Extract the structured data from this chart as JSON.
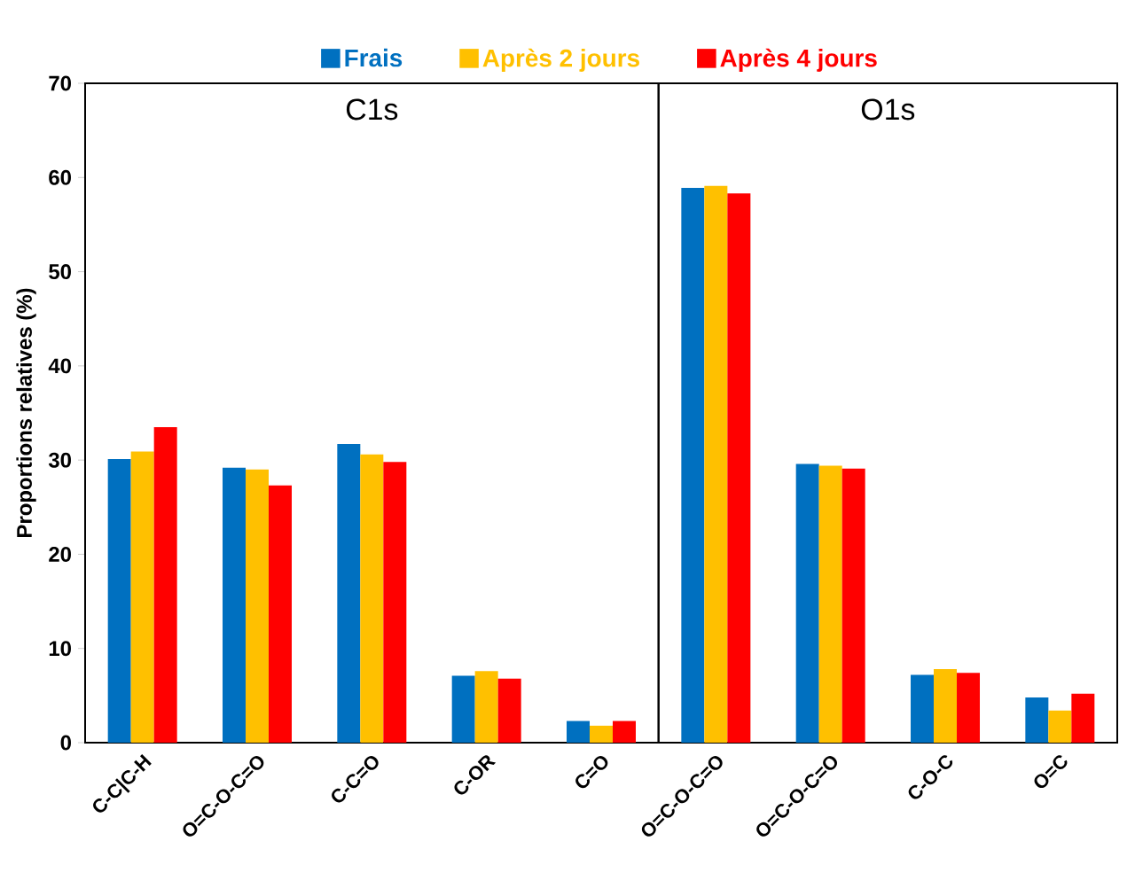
{
  "chart_data": [
    {
      "type": "bar",
      "title": "C1s",
      "ylabel": "Proportions relatives (%)",
      "categories": [
        "C-C|C-H",
        "O=C-O-C=O",
        "C-C=O",
        "C-OR",
        "C=O"
      ],
      "series": [
        {
          "name": "Frais",
          "color": "#0070c0",
          "values": [
            30.1,
            29.2,
            31.7,
            7.1,
            2.3
          ]
        },
        {
          "name": "Après 2 jours",
          "color": "#ffc000",
          "values": [
            30.9,
            29.0,
            30.6,
            7.6,
            1.8
          ]
        },
        {
          "name": "Après 4 jours",
          "color": "#ff0000",
          "values": [
            33.5,
            27.3,
            29.8,
            6.8,
            2.3
          ]
        }
      ],
      "ylim": [
        0,
        70
      ],
      "yticks": [
        0,
        10,
        20,
        30,
        40,
        50,
        60,
        70
      ],
      "legend": "top"
    },
    {
      "type": "bar",
      "title": "O1s",
      "categories": [
        "O=C-O-C=O",
        "O=C-O-C=O",
        "C-O-C",
        "O=C"
      ],
      "series": [
        {
          "color": "#0070c0",
          "values": [
            58.9,
            29.6,
            7.2,
            4.8
          ]
        },
        {
          "color": "#ffc000",
          "values": [
            59.1,
            29.4,
            7.8,
            3.4
          ]
        },
        {
          "color": "#ff0000",
          "values": [
            58.3,
            29.1,
            7.4,
            5.2
          ]
        }
      ],
      "ylim": [
        0,
        70
      ],
      "yticks": [
        0,
        10,
        20,
        30,
        40,
        50,
        60,
        70
      ],
      "tick_labels": "x"
    }
  ]
}
